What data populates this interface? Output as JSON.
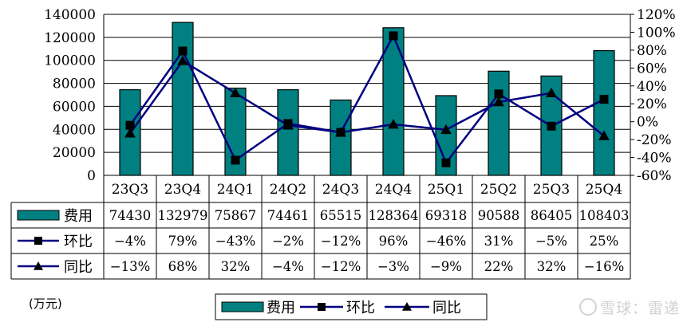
{
  "chart_data": {
    "type": "bar",
    "unit_label": "(万元)",
    "categories": [
      "23Q3",
      "23Q4",
      "24Q1",
      "24Q2",
      "24Q3",
      "24Q4",
      "25Q1",
      "25Q2",
      "25Q3",
      "25Q4"
    ],
    "y_left_ticks": [
      "0",
      "20000",
      "40000",
      "60000",
      "80000",
      "100000",
      "120000",
      "140000"
    ],
    "y_left_range": [
      0,
      140000
    ],
    "y_right_ticks": [
      "-60%",
      "-40%",
      "-20%",
      "0%",
      "20%",
      "40%",
      "60%",
      "80%",
      "100%",
      "120%"
    ],
    "y_right_range": [
      -60,
      120
    ],
    "grid": true,
    "legend_position": "bottom",
    "series": [
      {
        "name": "费用",
        "kind": "bar",
        "axis": "left",
        "color": "#008080",
        "values": [
          74430,
          132979,
          75867,
          74461,
          65515,
          128364,
          69318,
          90588,
          86405,
          108403
        ],
        "labels": [
          "74430",
          "132979",
          "75867",
          "74461",
          "65515",
          "128364",
          "69318",
          "90588",
          "86405",
          "108403"
        ]
      },
      {
        "name": "环比",
        "kind": "line",
        "axis": "right",
        "marker": "square",
        "color": "#000080",
        "values": [
          -4,
          79,
          -43,
          -2,
          -12,
          96,
          -46,
          31,
          -5,
          25
        ],
        "labels": [
          "-4%",
          "79%",
          "-43%",
          "-2%",
          "-12%",
          "96%",
          "-46%",
          "31%",
          "-5%",
          "25%"
        ]
      },
      {
        "name": "同比",
        "kind": "line",
        "axis": "right",
        "marker": "triangle",
        "color": "#000080",
        "values": [
          -13,
          68,
          32,
          -4,
          -12,
          -3,
          -9,
          22,
          32,
          -16
        ],
        "labels": [
          "-13%",
          "68%",
          "32%",
          "-4%",
          "-12%",
          "-3%",
          "-9%",
          "22%",
          "32%",
          "-16%"
        ]
      }
    ]
  },
  "watermark": "雪球：雷递"
}
